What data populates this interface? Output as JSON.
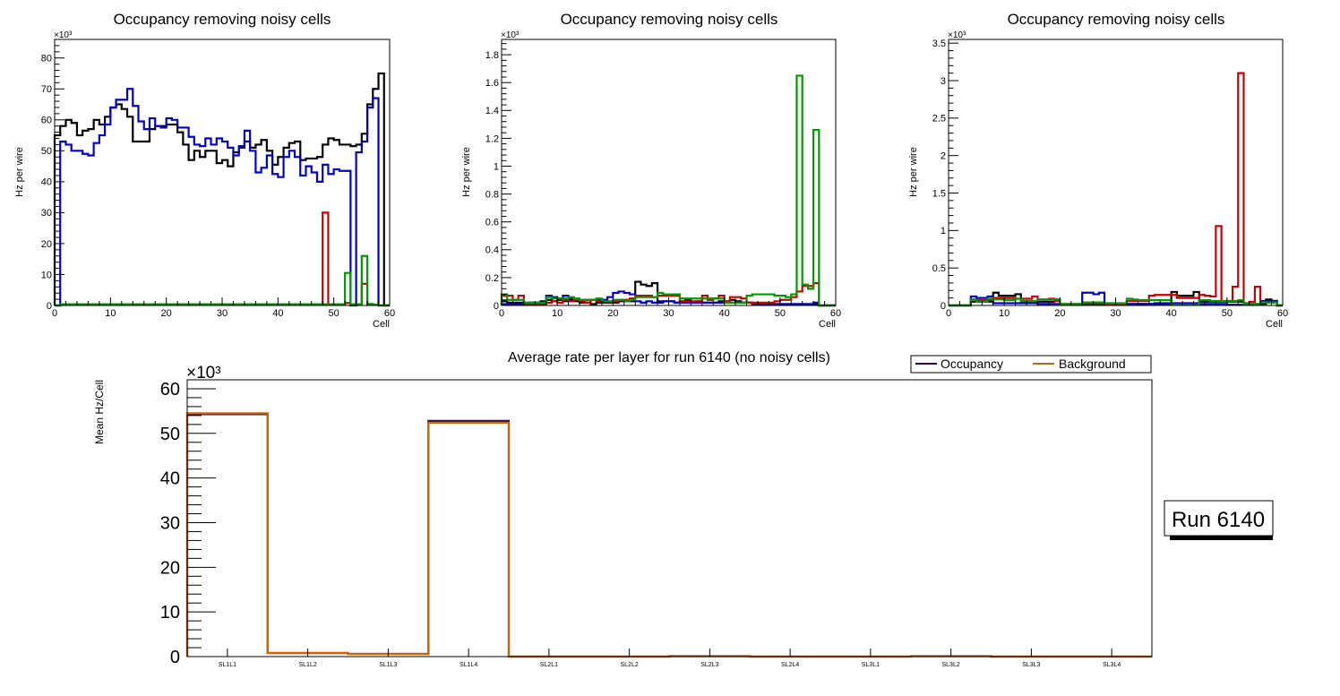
{
  "chart_data": [
    {
      "type": "histogram-step",
      "title": "Occupancy removing noisy cells",
      "xlabel": "Cell",
      "ylabel": "Hz per wire",
      "exponent": "×10³",
      "xlim": [
        0,
        60
      ],
      "ylim": [
        0,
        86
      ],
      "xticks": [
        "0",
        "10",
        "20",
        "30",
        "40",
        "50",
        "60"
      ],
      "yticks": [
        "0",
        "10",
        "20",
        "30",
        "40",
        "50",
        "60",
        "70",
        "80"
      ],
      "ytick_values": [
        0,
        10,
        20,
        30,
        40,
        50,
        60,
        70,
        80
      ],
      "series": [
        {
          "name": "black",
          "color": "#000000",
          "values": [
            55,
            58,
            60,
            59,
            55,
            56.5,
            57,
            60,
            58.5,
            61,
            64,
            65,
            63.5,
            61,
            53,
            53,
            53,
            57,
            58,
            58,
            58.5,
            58.5,
            56,
            52,
            47,
            50,
            48,
            50,
            50,
            46,
            47,
            45,
            49.5,
            51,
            53,
            51,
            52,
            53.5,
            50,
            45.5,
            48,
            51,
            52.5,
            53,
            47,
            47.5,
            47.5,
            48,
            52,
            54,
            53.5,
            52,
            52,
            51.5,
            52,
            55.5,
            65,
            70,
            75,
            0
          ]
        },
        {
          "name": "blue",
          "color": "#0000cc",
          "values": [
            0,
            53,
            52,
            50,
            50,
            49,
            48.5,
            52.5,
            55,
            58.5,
            64,
            66.5,
            66.5,
            70,
            64.5,
            59.5,
            57,
            60.5,
            58,
            57.5,
            60.5,
            60,
            57.5,
            57.5,
            54.5,
            52,
            51.5,
            54,
            52,
            54,
            53,
            51,
            48.5,
            51.5,
            56.5,
            50,
            43,
            44.5,
            48.5,
            42.5,
            41.5,
            48,
            50,
            48,
            42,
            45,
            43,
            40,
            45.5,
            42.5,
            44,
            43.5,
            43.5,
            0,
            49.5,
            53,
            64,
            67,
            0,
            0
          ]
        },
        {
          "name": "red",
          "color": "#cc0000",
          "values": [
            0,
            0.2,
            0.2,
            0.2,
            0.2,
            0.3,
            0.3,
            0.2,
            0.2,
            0.3,
            0.2,
            0.3,
            0.3,
            0.3,
            0.3,
            0.3,
            0.3,
            0.2,
            0.2,
            0.3,
            0.2,
            0.2,
            0.2,
            0.2,
            0.2,
            0.2,
            0.2,
            0.2,
            0.2,
            0.2,
            0.2,
            0.2,
            0.2,
            0.2,
            0.2,
            0.3,
            0.3,
            0.2,
            0.2,
            0.2,
            0.3,
            0.3,
            0.3,
            0.2,
            0.2,
            0.2,
            0.2,
            0.2,
            30,
            0.2,
            0.2,
            0.2,
            0.8,
            0.2,
            0.2,
            7,
            0.2,
            0.2,
            0,
            0
          ]
        },
        {
          "name": "green",
          "color": "#009900",
          "values": [
            0,
            0.4,
            0.4,
            0.4,
            0.4,
            0.4,
            0.4,
            0.4,
            0.4,
            0.4,
            0.4,
            0.4,
            0.4,
            0.4,
            0.4,
            0.4,
            0.4,
            0.4,
            0.4,
            0.4,
            0.4,
            0.4,
            0.4,
            0.4,
            0.4,
            0.4,
            0.4,
            0.4,
            0.4,
            0.4,
            0.4,
            0.4,
            0.4,
            0.4,
            0.4,
            0.4,
            0.4,
            0.4,
            0.4,
            0.4,
            0.4,
            0.4,
            0.4,
            0.4,
            0.4,
            0.4,
            0.4,
            0.4,
            0.4,
            0.4,
            0.4,
            0.4,
            10.5,
            0.4,
            0.4,
            16,
            0.5,
            0.3,
            0,
            0
          ]
        }
      ]
    },
    {
      "type": "histogram-step",
      "title": "Occupancy removing noisy cells",
      "xlabel": "Cell",
      "ylabel": "Hz per wire",
      "exponent": "×10³",
      "xlim": [
        0,
        60
      ],
      "ylim": [
        0,
        1.91
      ],
      "xticks": [
        "0",
        "10",
        "20",
        "30",
        "40",
        "50",
        "60"
      ],
      "yticks": [
        "0",
        "0.2",
        "0.4",
        "0.6",
        "0.8",
        "1",
        "1.2",
        "1.4",
        "1.6",
        "1.8"
      ],
      "ytick_values": [
        0,
        0.2,
        0.4,
        0.6,
        0.8,
        1,
        1.2,
        1.4,
        1.6,
        1.8
      ],
      "series": [
        {
          "name": "black",
          "color": "#000000",
          "values": [
            0.03,
            0.02,
            0.02,
            0.02,
            0.01,
            0.02,
            0.02,
            0.03,
            0.04,
            0.03,
            0.04,
            0.03,
            0.04,
            0.03,
            0.02,
            0.02,
            0.01,
            0.02,
            0.02,
            0.02,
            0.02,
            0.03,
            0.03,
            0.03,
            0.17,
            0.15,
            0.14,
            0.16,
            0.02,
            0.03,
            0.03,
            0.02,
            0.03,
            0.04,
            0.02,
            0.03,
            0.02,
            0.02,
            0.02,
            0.03,
            0.03,
            0.04,
            0.03,
            0.02,
            0.02,
            0.01,
            0.01,
            0.01,
            0.01,
            0.01,
            0.01,
            0.01,
            0.01,
            0.01,
            0.01,
            0.01,
            0.01,
            0,
            0,
            0
          ]
        },
        {
          "name": "blue",
          "color": "#0000cc",
          "values": [
            0.01,
            0.01,
            0.01,
            0.01,
            0.02,
            0.02,
            0.02,
            0.02,
            0.07,
            0.06,
            0.05,
            0.07,
            0.05,
            0.04,
            0.03,
            0.04,
            0.04,
            0.04,
            0.04,
            0.06,
            0.09,
            0.1,
            0.09,
            0.08,
            0.03,
            0.02,
            0.03,
            0.02,
            0.03,
            0.03,
            0.03,
            0.02,
            0.02,
            0.02,
            0.02,
            0.02,
            0.02,
            0.02,
            0.02,
            0.02,
            0.02,
            0.02,
            0.02,
            0.02,
            0.02,
            0.01,
            0.01,
            0.01,
            0.01,
            0.01,
            0.01,
            0.01,
            0.01,
            0.01,
            0.01,
            0.01,
            0.02,
            0,
            0,
            0
          ]
        },
        {
          "name": "red",
          "color": "#cc0000",
          "values": [
            0.07,
            0.07,
            0.04,
            0.07,
            0.01,
            0.01,
            0.01,
            0.01,
            0.02,
            0.03,
            0.02,
            0.04,
            0.03,
            0.04,
            0.03,
            0.02,
            0.04,
            0.03,
            0.03,
            0.03,
            0.03,
            0.04,
            0.04,
            0.05,
            0.07,
            0.07,
            0.07,
            0.06,
            0.07,
            0.07,
            0.07,
            0.07,
            0.03,
            0.03,
            0.03,
            0.03,
            0.07,
            0.04,
            0.05,
            0.07,
            0.03,
            0.06,
            0.06,
            0.05,
            0.02,
            0.02,
            0.02,
            0.02,
            0.02,
            0.03,
            0.04,
            0.04,
            0.06,
            0.1,
            0.14,
            0.14,
            0.16,
            0,
            0,
            0
          ]
        },
        {
          "name": "green",
          "color": "#009900",
          "values": [
            0.08,
            0.04,
            0.04,
            0.04,
            0.02,
            0.02,
            0.02,
            0.02,
            0.06,
            0.05,
            0.05,
            0.05,
            0.06,
            0.05,
            0.04,
            0.04,
            0.04,
            0.05,
            0.03,
            0.03,
            0.04,
            0.04,
            0.03,
            0.04,
            0.06,
            0.06,
            0.06,
            0.06,
            0.09,
            0.08,
            0.08,
            0.08,
            0.05,
            0.05,
            0.05,
            0.05,
            0.05,
            0.05,
            0.05,
            0.05,
            0.02,
            0.02,
            0.02,
            0.02,
            0.07,
            0.08,
            0.08,
            0.08,
            0.08,
            0.07,
            0.07,
            0.06,
            0.08,
            1.65,
            0.15,
            0.12,
            1.26,
            0,
            0,
            0
          ]
        }
      ]
    },
    {
      "type": "histogram-step",
      "title": "Occupancy removing noisy cells",
      "xlabel": "Cell",
      "ylabel": "Hz per wire",
      "exponent": "×10³",
      "xlim": [
        0,
        60
      ],
      "ylim": [
        0,
        3.55
      ],
      "xticks": [
        "0",
        "10",
        "20",
        "30",
        "40",
        "50",
        "60"
      ],
      "yticks": [
        "0",
        "0.5",
        "1",
        "1.5",
        "2",
        "2.5",
        "3",
        "3.5"
      ],
      "ytick_values": [
        0,
        0.5,
        1,
        1.5,
        2,
        2.5,
        3,
        3.5
      ],
      "series": [
        {
          "name": "black",
          "color": "#000000",
          "values": [
            0,
            0,
            0,
            0,
            0.05,
            0.05,
            0.05,
            0.05,
            0.17,
            0.13,
            0.13,
            0.13,
            0.15,
            0.05,
            0.05,
            0.05,
            0.05,
            0.05,
            0.05,
            0.08,
            0.02,
            0.02,
            0.02,
            0.02,
            0.02,
            0.02,
            0.02,
            0.02,
            0.02,
            0.02,
            0.02,
            0.02,
            0.02,
            0.02,
            0.02,
            0.02,
            0.02,
            0.02,
            0.02,
            0.02,
            0.18,
            0.13,
            0.13,
            0.13,
            0.18,
            0.05,
            0.05,
            0.05,
            0.05,
            0.05,
            0.05,
            0.05,
            0.05,
            0.02,
            0.02,
            0.02,
            0.02,
            0.08,
            0.06,
            0
          ]
        },
        {
          "name": "blue",
          "color": "#0000cc",
          "values": [
            0,
            0,
            0,
            0,
            0.12,
            0.1,
            0.1,
            0.12,
            0.03,
            0.03,
            0.03,
            0.03,
            0.03,
            0.03,
            0.03,
            0.03,
            0.02,
            0.02,
            0.02,
            0.02,
            0.01,
            0.01,
            0.01,
            0.01,
            0.17,
            0.17,
            0.15,
            0.17,
            0.02,
            0.02,
            0.02,
            0.02,
            0.02,
            0.02,
            0.02,
            0.02,
            0.02,
            0.03,
            0.03,
            0.03,
            0.03,
            0.03,
            0.03,
            0.03,
            0.03,
            0.02,
            0.02,
            0.02,
            0.02,
            0.02,
            0.01,
            0.01,
            0.01,
            0.01,
            0.01,
            0.01,
            0.06,
            0.06,
            0.06,
            0
          ]
        },
        {
          "name": "red",
          "color": "#cc0000",
          "values": [
            0,
            0,
            0,
            0,
            0.08,
            0.07,
            0.07,
            0.07,
            0.1,
            0.1,
            0.1,
            0.1,
            0.09,
            0.09,
            0.09,
            0.12,
            0.08,
            0.08,
            0.09,
            0.06,
            0.01,
            0.01,
            0.01,
            0.01,
            0.03,
            0.03,
            0.03,
            0.03,
            0.01,
            0.01,
            0.01,
            0.01,
            0.06,
            0.06,
            0.06,
            0.06,
            0.13,
            0.14,
            0.14,
            0.14,
            0.14,
            0.1,
            0.1,
            0.1,
            0.1,
            0.14,
            0.13,
            0.12,
            1.06,
            0.05,
            0.06,
            0.25,
            3.1,
            0.03,
            0.05,
            0.25,
            0.04,
            0.04,
            0.04,
            0
          ]
        },
        {
          "name": "green",
          "color": "#009900",
          "values": [
            0,
            0,
            0,
            0,
            0.08,
            0.05,
            0.05,
            0.09,
            0.08,
            0.08,
            0.07,
            0.07,
            0.09,
            0.06,
            0.06,
            0.06,
            0.08,
            0.08,
            0.08,
            0.08,
            0.02,
            0.02,
            0.02,
            0.02,
            0.04,
            0.04,
            0.04,
            0.04,
            0.03,
            0.03,
            0.03,
            0.03,
            0.09,
            0.08,
            0.07,
            0.07,
            0.07,
            0.07,
            0.07,
            0.07,
            0.01,
            0.01,
            0.01,
            0.01,
            0.01,
            0.07,
            0.07,
            0.06,
            0.06,
            0.06,
            0.06,
            0.06,
            0.07,
            0.02,
            0.02,
            0.02,
            0.04,
            0.04,
            0.04,
            0
          ]
        }
      ]
    },
    {
      "type": "histogram-step",
      "title": "Average rate per layer for run 6140 (no noisy cells)",
      "xlabel": "",
      "ylabel": "Mean Hz/Cell",
      "exponent": "×10³",
      "ylim": [
        0,
        62
      ],
      "yticks": [
        "0",
        "10",
        "20",
        "30",
        "40",
        "50",
        "60"
      ],
      "ytick_values": [
        0,
        10,
        20,
        30,
        40,
        50,
        60
      ],
      "categories": [
        "SL1L1",
        "SL1L2",
        "SL1L3",
        "SL1L4",
        "SL2L1",
        "SL2L2",
        "SL2L3",
        "SL2L4",
        "SL3L1",
        "SL3L2",
        "SL3L3",
        "SL3L4"
      ],
      "legend": {
        "placement": "top-right"
      },
      "series": [
        {
          "name": "Occupancy",
          "color": "#330066",
          "values": [
            54.3,
            0.8,
            0.6,
            52.8,
            0,
            0,
            0.1,
            0,
            0,
            0.1,
            0,
            0
          ]
        },
        {
          "name": "Background",
          "color": "#cc6600",
          "values": [
            54.5,
            0.8,
            0.6,
            52.4,
            0,
            0,
            0.1,
            0,
            0,
            0.1,
            0,
            0
          ]
        }
      ],
      "annotation": "Run 6140"
    }
  ]
}
